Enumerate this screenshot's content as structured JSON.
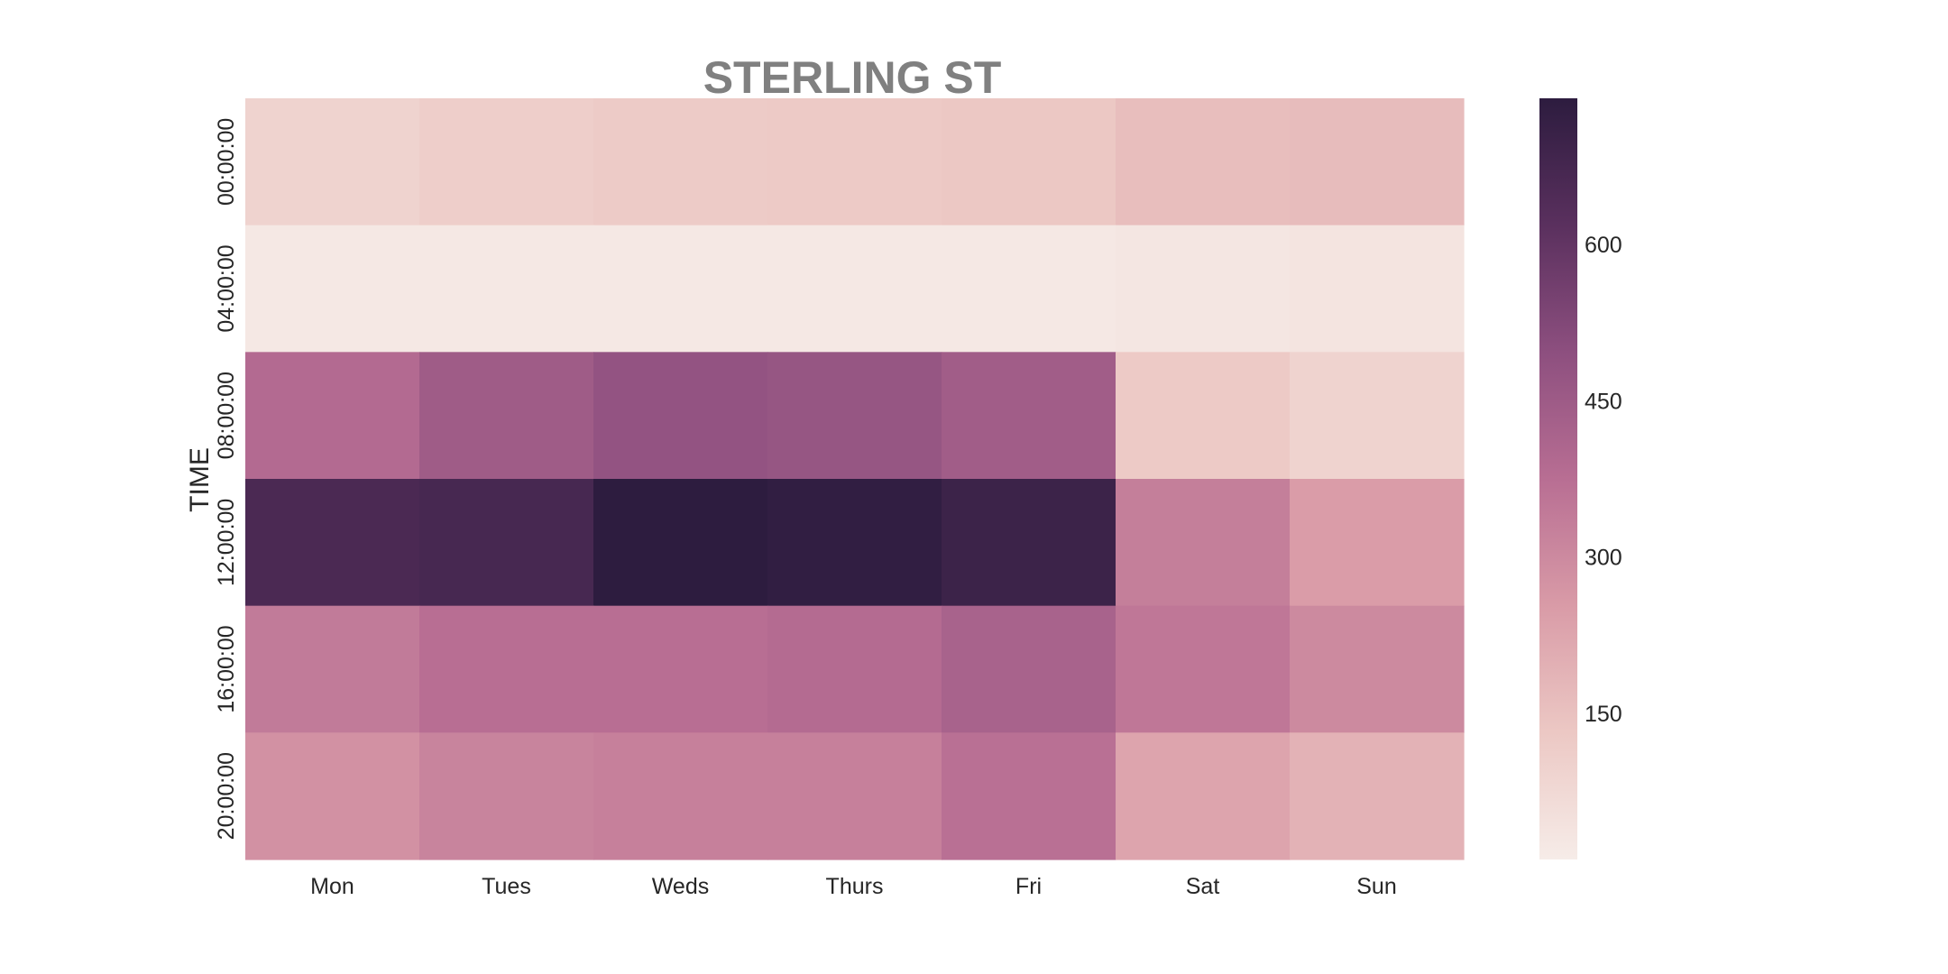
{
  "chart_data": {
    "type": "heatmap",
    "title": "STERLING ST",
    "ylabel": "TIME",
    "xlabel": "",
    "x": [
      "Mon",
      "Tues",
      "Weds",
      "Thurs",
      "Fri",
      "Sat",
      "Sun"
    ],
    "y": [
      "00:00:00",
      "04:00:00",
      "08:00:00",
      "12:00:00",
      "16:00:00",
      "20:00:00"
    ],
    "values": [
      [
        95,
        110,
        120,
        125,
        130,
        160,
        165
      ],
      [
        25,
        25,
        25,
        22,
        25,
        30,
        38
      ],
      [
        390,
        445,
        480,
        470,
        440,
        125,
        95
      ],
      [
        660,
        670,
        740,
        730,
        700,
        330,
        250
      ],
      [
        340,
        375,
        375,
        385,
        420,
        350,
        300
      ],
      [
        280,
        315,
        325,
        325,
        370,
        230,
        190
      ]
    ],
    "colorbar": {
      "ticks": [
        150,
        300,
        450,
        600
      ],
      "range": [
        10,
        740
      ],
      "colors": [
        "#f6ece8",
        "#ecc8c4",
        "#d99ba7",
        "#b86e93",
        "#8d4f7f",
        "#5a305e",
        "#2d1c3f"
      ]
    },
    "grid": false
  }
}
